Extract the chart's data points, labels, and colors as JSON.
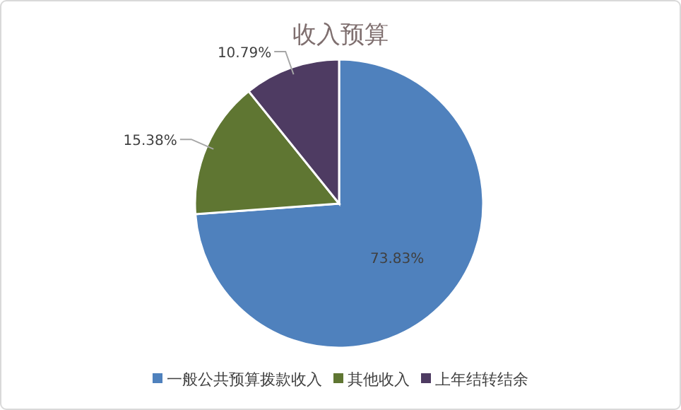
{
  "chart_data": {
    "type": "pie",
    "title": "收入预算",
    "categories": [
      "一般公共预算拨款收入",
      "其他收入",
      "上年结转结余"
    ],
    "values": [
      73.83,
      15.38,
      10.79
    ],
    "value_labels": [
      "73.83%",
      "15.38%",
      "10.79%"
    ],
    "colors": [
      "#4f81bd",
      "#5f7632",
      "#4e3b62"
    ],
    "legend": "bottom"
  }
}
